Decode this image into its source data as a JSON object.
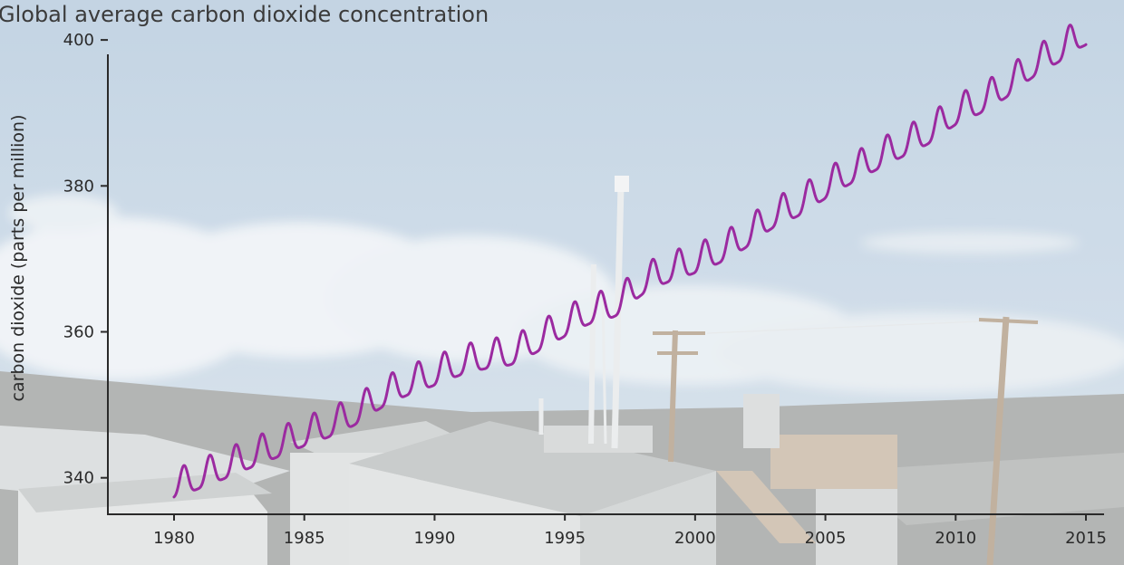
{
  "colors": {
    "series_line": "#9b2aa0",
    "axis": "#2a2a2a",
    "text": "#3b3b3b",
    "background_photo_sky": "#c3d3e2"
  },
  "background_photo": {
    "subject": "Mauna Loa observatory buildings on a mountain slope above a sea of clouds",
    "icon": "photo-background"
  },
  "chart_data": {
    "type": "line",
    "title": "Global average carbon dioxide concentration",
    "xlabel": "",
    "ylabel": "carbon dioxide (parts per million)",
    "xlim": [
      1980,
      2015
    ],
    "ylim": [
      335,
      402
    ],
    "x_ticks": [
      1980,
      1985,
      1990,
      1995,
      2000,
      2005,
      2010,
      2015
    ],
    "y_ticks": [
      340,
      360,
      380,
      400
    ],
    "grid": false,
    "legend": "none",
    "seasonal_cycle": true,
    "series": [
      {
        "x": [
          1980.0,
          1981.0,
          1982.0,
          1983.0,
          1984.0,
          1985.0,
          1986.0,
          1987.0,
          1988.0,
          1989.0,
          1990.0,
          1991.0,
          1992.0,
          1993.0,
          1994.0,
          1995.0,
          1996.0,
          1997.0,
          1998.0,
          1999.0,
          2000.0,
          2001.0,
          2002.0,
          2003.0,
          2004.0,
          2005.0,
          2006.0,
          2007.0,
          2008.0,
          2009.0,
          2010.0,
          2011.0,
          2012.0,
          2013.0,
          2014.0,
          2015.0
        ],
        "values": [
          338.8,
          340.1,
          341.5,
          343.0,
          344.4,
          345.9,
          347.2,
          348.9,
          351.2,
          352.9,
          354.2,
          355.6,
          356.5,
          357.1,
          358.9,
          360.9,
          362.7,
          363.8,
          366.7,
          368.4,
          369.6,
          371.1,
          373.2,
          375.8,
          377.5,
          379.8,
          381.9,
          383.8,
          385.6,
          387.4,
          389.9,
          391.6,
          393.8,
          396.5,
          398.6,
          400.8
        ],
        "seasonal_amplitude": 2.0
      }
    ]
  }
}
